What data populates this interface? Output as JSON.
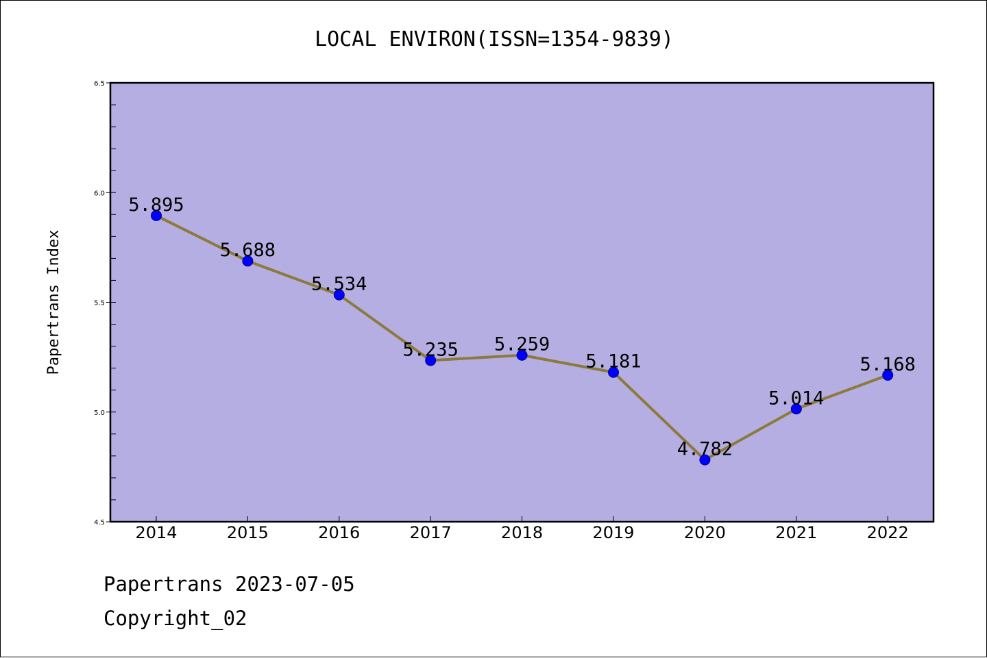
{
  "chart_data": {
    "type": "line",
    "title": "LOCAL ENVIRON(ISSN=1354-9839)",
    "xlabel": "",
    "ylabel": "Papertrans Index",
    "categories": [
      "2014",
      "2015",
      "2016",
      "2017",
      "2018",
      "2019",
      "2020",
      "2021",
      "2022"
    ],
    "series": [
      {
        "values": [
          5.895,
          5.688,
          5.534,
          5.235,
          5.259,
          5.181,
          4.782,
          5.014,
          5.168
        ],
        "labels": [
          "5.895",
          "5.688",
          "5.534",
          "5.235",
          "5.259",
          "5.181",
          "4.782",
          "5.014",
          "5.168"
        ]
      }
    ],
    "ylim": [
      4.5,
      6.5
    ],
    "yticks": [
      "4.5",
      "5.0",
      "5.5",
      "6.0",
      "6.5"
    ],
    "yminor_step": 0.1,
    "grid": false,
    "legend": "none",
    "colors": {
      "plot_background": "#b5aee2",
      "line": "#8c7a3c",
      "marker": "#0000ff",
      "marker_edge": "#00008b",
      "axis": "#000000"
    }
  },
  "footer": {
    "source": "Papertrans 2023-07-05",
    "copyright": "Copyright_02"
  }
}
